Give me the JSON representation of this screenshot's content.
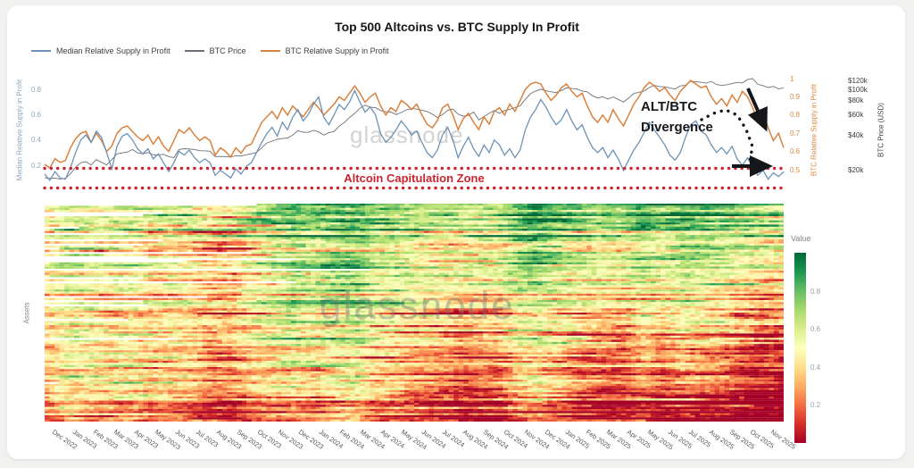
{
  "page": {
    "background": "#f1f1ef",
    "card_background": "#ffffff"
  },
  "title": "Top 500 Altcoins vs. BTC Supply In Profit",
  "watermark": "glassnode",
  "legend": [
    {
      "label": "Median Relative Supply in Profit",
      "color": "#6b92b8"
    },
    {
      "label": "BTC Price",
      "color": "#6d7076"
    },
    {
      "label": "BTC Relative Supply in Profit",
      "color": "#d9813d"
    }
  ],
  "annotations": {
    "divergence_line1": "ALT/BTC",
    "divergence_line2": "Divergence",
    "capitulation_zone": "Altcoin Capitulation Zone",
    "capitulation_color": "#cc2430"
  },
  "chart_data": [
    {
      "type": "line",
      "title": "Top 500 Altcoins vs. BTC Supply In Profit",
      "x_start": "Dec 2022",
      "x_end": "Nov 2025",
      "points_per_month": 4,
      "legend_position": "top-left",
      "grid": false,
      "axes": {
        "left": {
          "label": "Median Relative Supply in Profit",
          "ticks": [
            0.8,
            0.6,
            0.4,
            0.2
          ],
          "range": [
            0,
            1
          ],
          "color": "#8ea6ba"
        },
        "right_ratio": {
          "label": "BTC Relative Supply in Profit",
          "ticks": [
            1,
            0.9,
            0.8,
            0.7,
            0.6,
            0.5
          ],
          "range": [
            0.5,
            1
          ],
          "color": "#d98a43"
        },
        "right_usd": {
          "label": "BTC Price (USD)",
          "ticks": [
            "$120k",
            "$100k",
            "$80k",
            "$60k",
            "$40k",
            "$20k"
          ],
          "scale": "log",
          "color": "#3a3d42"
        }
      },
      "series": [
        {
          "name": "Median Relative Supply in Profit",
          "axis": "left",
          "color": "#6b92b8",
          "width": 1.3,
          "values": [
            0.13,
            0.08,
            0.15,
            0.1,
            0.09,
            0.18,
            0.3,
            0.4,
            0.44,
            0.38,
            0.47,
            0.42,
            0.3,
            0.17,
            0.35,
            0.43,
            0.45,
            0.4,
            0.33,
            0.29,
            0.33,
            0.25,
            0.29,
            0.22,
            0.15,
            0.22,
            0.31,
            0.28,
            0.32,
            0.26,
            0.22,
            0.25,
            0.22,
            0.12,
            0.16,
            0.13,
            0.1,
            0.17,
            0.13,
            0.19,
            0.22,
            0.3,
            0.38,
            0.45,
            0.5,
            0.43,
            0.54,
            0.48,
            0.58,
            0.64,
            0.55,
            0.6,
            0.68,
            0.74,
            0.58,
            0.52,
            0.6,
            0.68,
            0.64,
            0.7,
            0.79,
            0.7,
            0.62,
            0.66,
            0.6,
            0.45,
            0.38,
            0.42,
            0.48,
            0.55,
            0.5,
            0.44,
            0.47,
            0.38,
            0.3,
            0.26,
            0.32,
            0.44,
            0.5,
            0.4,
            0.26,
            0.35,
            0.42,
            0.33,
            0.27,
            0.36,
            0.3,
            0.4,
            0.36,
            0.28,
            0.33,
            0.26,
            0.32,
            0.48,
            0.58,
            0.64,
            0.72,
            0.66,
            0.58,
            0.52,
            0.56,
            0.64,
            0.55,
            0.48,
            0.52,
            0.42,
            0.34,
            0.3,
            0.34,
            0.26,
            0.32,
            0.25,
            0.16,
            0.24,
            0.32,
            0.38,
            0.46,
            0.54,
            0.48,
            0.42,
            0.36,
            0.28,
            0.24,
            0.3,
            0.42,
            0.52,
            0.55,
            0.47,
            0.44,
            0.36,
            0.3,
            0.34,
            0.29,
            0.35,
            0.25,
            0.2,
            0.26,
            0.18,
            0.12,
            0.16,
            0.09,
            0.14,
            0.11,
            0.15
          ]
        },
        {
          "name": "BTC Relative Supply in Profit",
          "axis": "right_ratio",
          "color": "#d9813d",
          "width": 1.5,
          "values": [
            0.53,
            0.51,
            0.56,
            0.54,
            0.55,
            0.62,
            0.67,
            0.7,
            0.71,
            0.65,
            0.7,
            0.66,
            0.6,
            0.63,
            0.7,
            0.73,
            0.74,
            0.71,
            0.68,
            0.66,
            0.69,
            0.64,
            0.68,
            0.63,
            0.6,
            0.66,
            0.72,
            0.7,
            0.73,
            0.69,
            0.66,
            0.68,
            0.66,
            0.58,
            0.62,
            0.6,
            0.57,
            0.62,
            0.59,
            0.63,
            0.64,
            0.7,
            0.76,
            0.79,
            0.82,
            0.78,
            0.84,
            0.8,
            0.85,
            0.82,
            0.79,
            0.83,
            0.87,
            0.84,
            0.8,
            0.83,
            0.86,
            0.9,
            0.88,
            0.92,
            0.96,
            0.92,
            0.87,
            0.9,
            0.92,
            0.85,
            0.8,
            0.84,
            0.82,
            0.88,
            0.86,
            0.83,
            0.86,
            0.8,
            0.75,
            0.73,
            0.77,
            0.84,
            0.86,
            0.8,
            0.72,
            0.78,
            0.81,
            0.76,
            0.72,
            0.79,
            0.75,
            0.82,
            0.84,
            0.8,
            0.86,
            0.82,
            0.88,
            0.94,
            0.97,
            0.98,
            0.97,
            0.92,
            0.88,
            0.91,
            0.95,
            0.97,
            0.93,
            0.9,
            0.92,
            0.85,
            0.79,
            0.76,
            0.8,
            0.76,
            0.83,
            0.78,
            0.74,
            0.8,
            0.86,
            0.9,
            0.95,
            0.98,
            0.96,
            0.93,
            0.95,
            0.91,
            0.88,
            0.93,
            0.96,
            0.99,
            0.97,
            0.95,
            0.96,
            0.9,
            0.86,
            0.89,
            0.85,
            0.91,
            0.87,
            0.93,
            0.9,
            0.84,
            0.76,
            0.82,
            0.73,
            0.66,
            0.7,
            0.62
          ]
        },
        {
          "name": "BTC Price",
          "axis": "right_usd",
          "unit": "kUSD",
          "color": "#6d7076",
          "width": 0.9,
          "values": [
            17.0,
            16.8,
            16.9,
            16.6,
            16.8,
            18.5,
            21.0,
            23.0,
            23.5,
            22.0,
            24.5,
            23.2,
            22.0,
            24.5,
            27.5,
            28.0,
            28.5,
            30.0,
            28.0,
            27.5,
            28.2,
            27.0,
            26.8,
            27.3,
            26.0,
            25.5,
            30.0,
            30.5,
            30.3,
            30.0,
            29.3,
            29.2,
            29.0,
            26.0,
            26.1,
            26.0,
            25.8,
            26.5,
            26.3,
            27.0,
            27.5,
            28.3,
            31.0,
            34.2,
            35.5,
            36.8,
            37.4,
            37.8,
            40.0,
            43.8,
            42.5,
            42.3,
            44.0,
            42.8,
            40.0,
            42.0,
            43.1,
            48.0,
            51.5,
            57.0,
            62.0,
            68.5,
            73.0,
            70.0,
            69.5,
            65.5,
            64.0,
            63.5,
            60.5,
            63.0,
            66.5,
            68.0,
            67.5,
            66.0,
            64.5,
            61.0,
            57.0,
            60.5,
            66.0,
            67.5,
            61.0,
            58.5,
            59.5,
            63.5,
            54.5,
            58.0,
            62.0,
            65.5,
            62.0,
            65.5,
            67.0,
            69.5,
            72.0,
            82.0,
            92.0,
            97.0,
            100.5,
            97.5,
            95.5,
            94.0,
            98.0,
            103.5,
            102.0,
            101.0,
            97.0,
            95.5,
            88.0,
            84.5,
            86.5,
            82.5,
            86.0,
            82.0,
            77.5,
            84.0,
            92.5,
            94.5,
            97.0,
            104.0,
            108.5,
            106.0,
            105.5,
            103.0,
            101.0,
            107.5,
            109.0,
            118.0,
            117.0,
            115.5,
            113.5,
            117.5,
            110.5,
            108.5,
            110.0,
            112.5,
            115.5,
            114.0,
            122.0,
            124.5,
            111.0,
            108.0,
            104.0,
            106.5,
            101.5,
            103.0
          ]
        }
      ],
      "annotations": [
        {
          "text": "ALT/BTC Divergence",
          "style": "bold black with dotted pointer and two arrows"
        },
        {
          "text": "Altcoin Capitulation Zone",
          "zone_left_axis": [
            0.03,
            0.19
          ],
          "style": "red dotted band"
        }
      ]
    },
    {
      "type": "heatmap",
      "ylabel": "Assets",
      "rows_desc": "Top 500 altcoins, one row per asset, relative supply in profit over time",
      "colorbar_title": "Value",
      "colorbar_ticks": [
        0.8,
        0.6,
        0.4,
        0.2
      ],
      "colorbar_range": [
        0,
        1
      ],
      "colormap": [
        [
          0,
          "#a50026"
        ],
        [
          0.1,
          "#d73027"
        ],
        [
          0.2,
          "#f46d43"
        ],
        [
          0.3,
          "#fdae61"
        ],
        [
          0.4,
          "#fee08b"
        ],
        [
          0.5,
          "#ffffbf"
        ],
        [
          0.6,
          "#d9ef8b"
        ],
        [
          0.7,
          "#a6d96a"
        ],
        [
          0.8,
          "#66bd63"
        ],
        [
          0.9,
          "#1a9850"
        ],
        [
          1,
          "#006837"
        ]
      ],
      "x_labels": [
        "Dec 2022",
        "Jan 2023",
        "Feb 2023",
        "Mar 2023",
        "Apr 2023",
        "May 2023",
        "Jun 2023",
        "Jul 2023",
        "Aug 2023",
        "Sep 2023",
        "Oct 2023",
        "Nov 2023",
        "Dec 2023",
        "Jan 2024",
        "Feb 2024",
        "Mar 2024",
        "Apr 2024",
        "May 2024",
        "Jun 2024",
        "Jul 2024",
        "Aug 2024",
        "Sep 2024",
        "Oct 2024",
        "Nov 2024",
        "Dec 2024",
        "Jan 2025",
        "Feb 2025",
        "Mar 2025",
        "Apr 2025",
        "May 2025",
        "Jun 2025",
        "Jul 2025",
        "Aug 2025",
        "Sep 2025",
        "Oct 2025",
        "Nov 2025"
      ],
      "monthly_mean_value": [
        0.4,
        0.55,
        0.5,
        0.45,
        0.48,
        0.4,
        0.42,
        0.4,
        0.32,
        0.33,
        0.45,
        0.52,
        0.58,
        0.52,
        0.58,
        0.62,
        0.5,
        0.5,
        0.44,
        0.4,
        0.35,
        0.38,
        0.38,
        0.55,
        0.58,
        0.5,
        0.42,
        0.38,
        0.36,
        0.46,
        0.38,
        0.46,
        0.42,
        0.38,
        0.32,
        0.25
      ],
      "pattern_note": "top-cap rows trend green on right side; bottom rows trend deep red; sparse white gaps for pre-launch assets"
    }
  ]
}
